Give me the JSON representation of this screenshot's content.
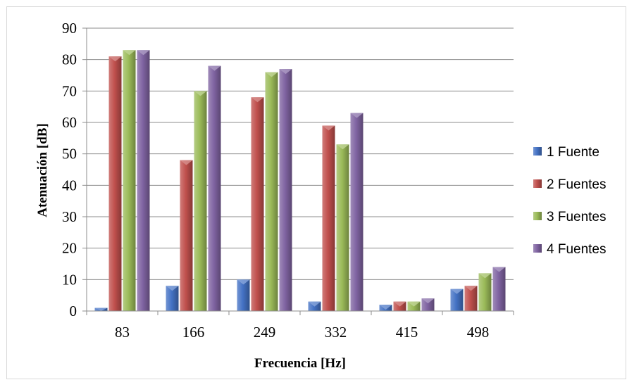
{
  "chart_data": {
    "type": "bar",
    "title": "",
    "xlabel": "Frecuencia [Hz]",
    "ylabel": "Atenuación [dB]",
    "categories": [
      "83",
      "166",
      "249",
      "332",
      "415",
      "498"
    ],
    "ylim": [
      0,
      90
    ],
    "yticks": [
      0,
      10,
      20,
      30,
      40,
      50,
      60,
      70,
      80,
      90
    ],
    "grid": true,
    "legend_position": "right",
    "series": [
      {
        "name": "1 Fuente",
        "color": "#4472c4",
        "values": [
          1,
          8,
          10,
          3,
          2,
          7
        ]
      },
      {
        "name": "2 Fuentes",
        "color": "#c0504d",
        "values": [
          81,
          48,
          68,
          59,
          3,
          8
        ]
      },
      {
        "name": "3 Fuentes",
        "color": "#9bbb59",
        "values": [
          83,
          70,
          76,
          53,
          3,
          12
        ]
      },
      {
        "name": "4 Fuentes",
        "color": "#8064a2",
        "values": [
          83,
          78,
          77,
          63,
          4,
          14
        ]
      }
    ]
  }
}
